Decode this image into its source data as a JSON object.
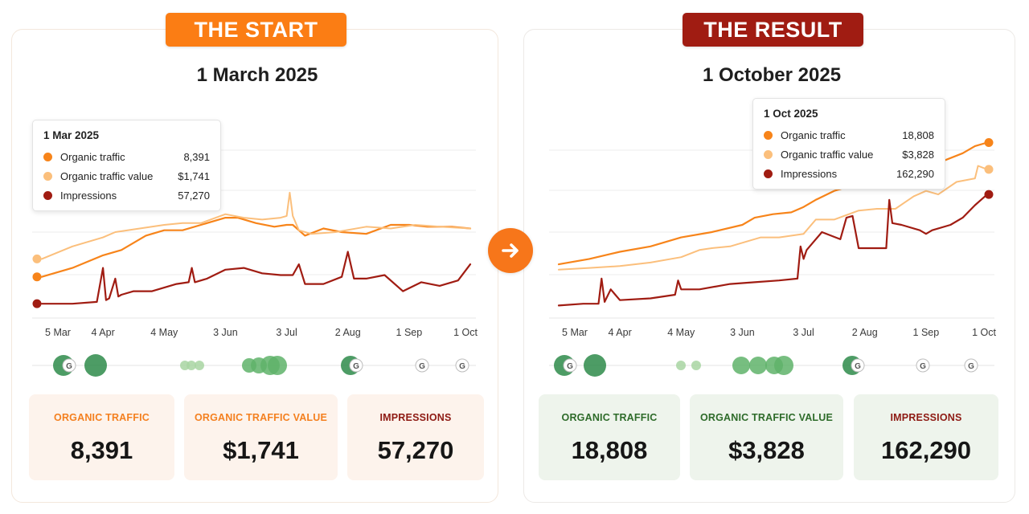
{
  "header": {
    "start_badge": "THE START",
    "result_badge": "THE RESULT",
    "start_date": "1 March 2025",
    "result_date": "1 October 2025"
  },
  "colors": {
    "organic_traffic": "#f7841a",
    "organic_traffic_value": "#fbbf7c",
    "impressions": "#a01c12",
    "start_accent": "#fb7d14",
    "result_accent": "#a01c12",
    "start_label": "#f48020",
    "result_label": "#2e6b2a",
    "impressions_label": "#8e1b14"
  },
  "tooltips": {
    "start": {
      "title": "1 Mar 2025",
      "rows": [
        {
          "label": "Organic traffic",
          "value": "8,391"
        },
        {
          "label": "Organic traffic value",
          "value": "$1,741"
        },
        {
          "label": "Impressions",
          "value": "57,270"
        }
      ]
    },
    "result": {
      "title": "1 Oct 2025",
      "rows": [
        {
          "label": "Organic traffic",
          "value": "18,808"
        },
        {
          "label": "Organic traffic value",
          "value": "$3,828"
        },
        {
          "label": "Impressions",
          "value": "162,290"
        }
      ]
    }
  },
  "cards": {
    "start": [
      {
        "label": "ORGANIC TRAFFIC",
        "value": "8,391"
      },
      {
        "label": "ORGANIC TRAFFIC VALUE",
        "value": "$1,741"
      },
      {
        "label": "IMPRESSIONS",
        "value": "57,270"
      }
    ],
    "result": [
      {
        "label": "ORGANIC TRAFFIC",
        "value": "18,808"
      },
      {
        "label": "ORGANIC TRAFFIC VALUE",
        "value": "$3,828"
      },
      {
        "label": "IMPRESSIONS",
        "value": "162,290"
      }
    ]
  },
  "annotation_icon": "G",
  "arrow_icon": "arrow-right-icon",
  "chart_data": [
    {
      "type": "line",
      "title": "1 March 2025",
      "x_ticks": [
        "5 Mar",
        "4 Apr",
        "4 May",
        "3 Jun",
        "3 Jul",
        "2 Aug",
        "1 Sep",
        "1 Oct"
      ],
      "x_range": [
        0,
        7
      ],
      "y_range": [
        0,
        100
      ],
      "y_scale": "relative, independent per series (no y axis labels)",
      "grid": "horizontal",
      "series": [
        {
          "name": "Organic traffic",
          "x": [
            0,
            0.5,
            1.0,
            1.3,
            1.7,
            2.0,
            2.3,
            2.6,
            3.0,
            3.2,
            3.5,
            3.8,
            4.0,
            4.1,
            4.3,
            4.6,
            4.9,
            5.3,
            5.7,
            6.0,
            6.3,
            6.7,
            7.0
          ],
          "y": [
            23,
            28,
            35,
            38,
            46,
            49,
            49,
            52,
            56,
            56,
            53,
            51,
            52,
            52,
            46,
            50,
            48,
            47,
            52,
            52,
            51,
            51,
            50
          ]
        },
        {
          "name": "Organic traffic value",
          "x": [
            0,
            0.5,
            1.0,
            1.2,
            1.6,
            2.0,
            2.3,
            2.6,
            3.0,
            3.3,
            3.6,
            3.9,
            4.0,
            4.05,
            4.1,
            4.2,
            4.4,
            4.8,
            5.3,
            5.7,
            6.1,
            6.5,
            7.0
          ],
          "y": [
            33,
            40,
            45,
            48,
            50,
            52,
            53,
            53,
            58,
            56,
            55,
            56,
            57,
            70,
            57,
            49,
            47,
            48,
            51,
            50,
            52,
            51,
            50
          ]
        },
        {
          "name": "Impressions",
          "x": [
            0,
            0.5,
            0.9,
            1.0,
            1.05,
            1.1,
            1.2,
            1.25,
            1.3,
            1.5,
            1.8,
            2.2,
            2.4,
            2.45,
            2.5,
            2.7,
            3.0,
            3.3,
            3.6,
            3.9,
            4.1,
            4.2,
            4.3,
            4.6,
            4.9,
            5.0,
            5.1,
            5.3,
            5.6,
            5.9,
            6.2,
            6.5,
            6.8,
            7.0
          ],
          "y": [
            8,
            8,
            9,
            28,
            10,
            11,
            22,
            12,
            13,
            15,
            15,
            19,
            20,
            28,
            20,
            22,
            27,
            28,
            25,
            24,
            24,
            30,
            19,
            19,
            23,
            37,
            22,
            22,
            24,
            15,
            20,
            18,
            21,
            30
          ]
        }
      ]
    },
    {
      "type": "line",
      "title": "1 October 2025",
      "x_ticks": [
        "5 Mar",
        "4 Apr",
        "4 May",
        "3 Jun",
        "3 Jul",
        "2 Aug",
        "1 Sep",
        "1 Oct"
      ],
      "x_range": [
        0,
        7
      ],
      "y_range": [
        0,
        100
      ],
      "y_scale": "relative, independent per series (no y axis labels)",
      "grid": "horizontal",
      "series": [
        {
          "name": "Organic traffic",
          "x": [
            0,
            0.5,
            1.0,
            1.5,
            2.0,
            2.5,
            3.0,
            3.2,
            3.5,
            3.8,
            4.0,
            4.2,
            4.5,
            4.8,
            5.0,
            5.2,
            5.5,
            5.8,
            6.0,
            6.3,
            6.6,
            6.8,
            7.0
          ],
          "y": [
            30,
            33,
            37,
            40,
            45,
            48,
            52,
            56,
            58,
            59,
            62,
            66,
            71,
            74,
            78,
            79,
            81,
            82,
            84,
            88,
            92,
            96,
            98
          ]
        },
        {
          "name": "Organic traffic value",
          "x": [
            0,
            0.5,
            1.0,
            1.5,
            2.0,
            2.3,
            2.5,
            2.8,
            3.0,
            3.3,
            3.6,
            4.0,
            4.2,
            4.5,
            4.9,
            5.2,
            5.5,
            5.8,
            6.0,
            6.2,
            6.5,
            6.8,
            6.85,
            7.0
          ],
          "y": [
            27,
            28,
            29,
            31,
            34,
            38,
            39,
            40,
            42,
            45,
            45,
            47,
            55,
            55,
            60,
            61,
            61,
            68,
            71,
            69,
            76,
            78,
            85,
            83
          ]
        },
        {
          "name": "Impressions",
          "x": [
            0,
            0.4,
            0.65,
            0.7,
            0.75,
            0.85,
            1.0,
            1.5,
            1.9,
            1.95,
            2.0,
            2.3,
            2.8,
            3.2,
            3.6,
            3.9,
            3.95,
            4.0,
            4.05,
            4.3,
            4.6,
            4.7,
            4.8,
            4.9,
            5.2,
            5.35,
            5.4,
            5.45,
            5.6,
            5.9,
            6.0,
            6.1,
            6.4,
            6.6,
            6.8,
            7.0
          ],
          "y": [
            7,
            8,
            8,
            22,
            9,
            16,
            10,
            11,
            13,
            21,
            16,
            16,
            19,
            20,
            21,
            22,
            40,
            33,
            38,
            48,
            44,
            56,
            57,
            39,
            39,
            39,
            66,
            53,
            52,
            49,
            47,
            49,
            52,
            56,
            63,
            69
          ]
        }
      ]
    }
  ]
}
